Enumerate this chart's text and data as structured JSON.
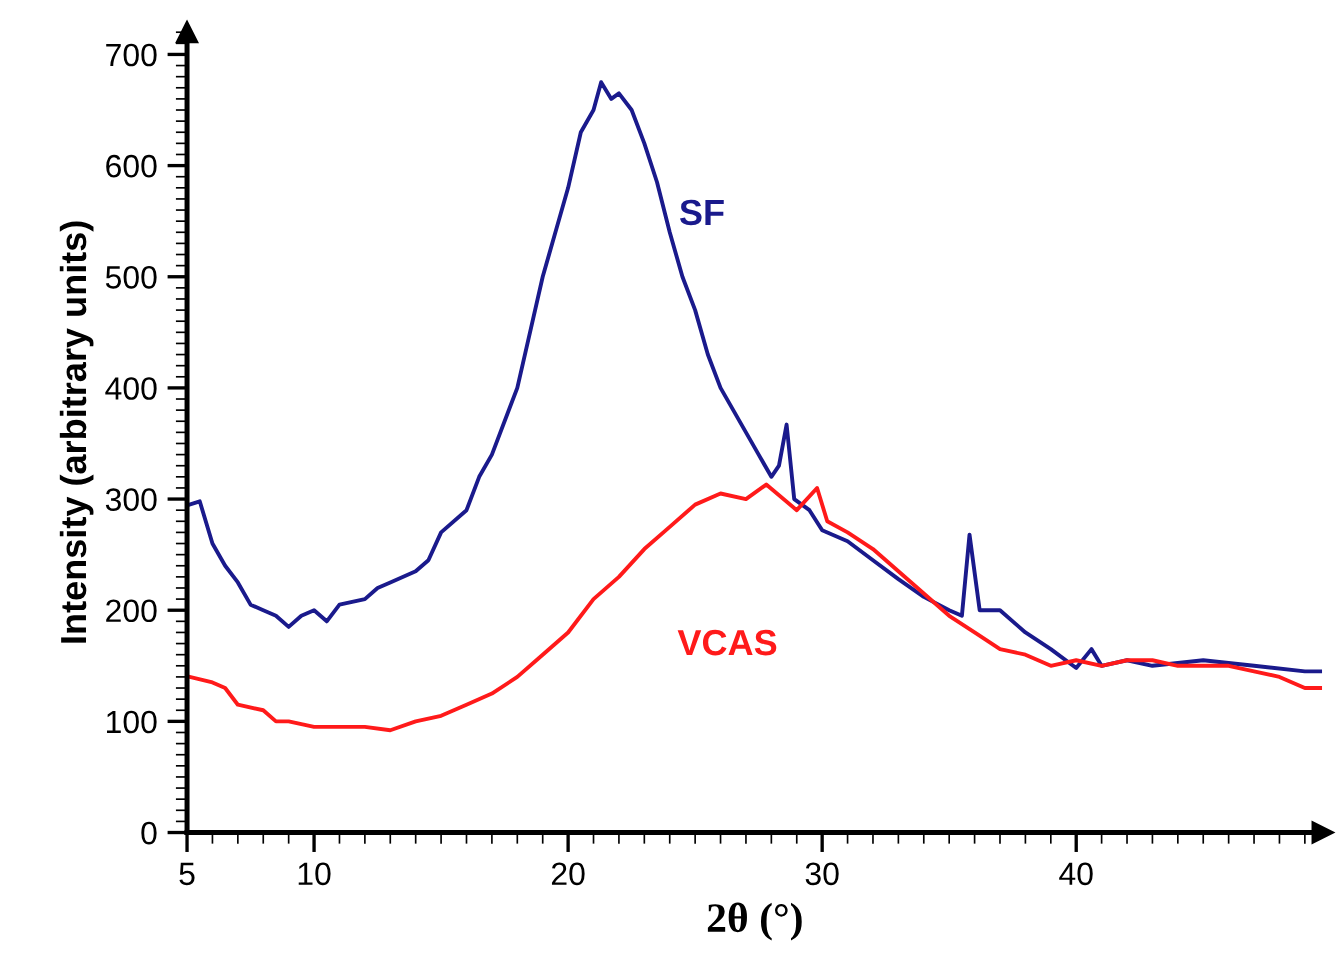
{
  "chart_data": {
    "type": "line",
    "xlabel": "2θ (°)",
    "ylabel": "Intensity (arbitrary units)",
    "xlim": [
      5,
      49.7
    ],
    "ylim": [
      0,
      720
    ],
    "xticks": [
      5,
      10,
      20,
      30,
      40
    ],
    "yticks": [
      0,
      100,
      200,
      300,
      400,
      500,
      600,
      700
    ],
    "grid": false,
    "legend": false,
    "marker": "none",
    "line_style": "solid",
    "series": [
      {
        "name": "SF",
        "color": "#1a1a8c",
        "x": [
          5.1,
          5.5,
          6,
          6.5,
          7,
          7.5,
          8,
          8.5,
          9,
          9.5,
          10,
          10.5,
          11,
          12,
          12.5,
          13,
          14,
          14.5,
          15,
          16,
          16.5,
          17,
          18,
          18.5,
          19,
          19.5,
          20,
          20.5,
          21,
          21.3,
          21.7,
          22,
          22.5,
          23,
          23.5,
          24,
          24.5,
          25,
          25.5,
          26,
          26.5,
          27,
          27.5,
          28,
          28.3,
          28.6,
          28.9,
          29.5,
          30,
          31,
          32,
          33,
          34,
          35,
          35.5,
          35.8,
          36.2,
          37,
          38,
          39,
          40,
          40.6,
          41,
          42,
          43,
          45,
          47,
          49,
          49.6
        ],
        "values": [
          295,
          298,
          260,
          240,
          225,
          205,
          200,
          195,
          185,
          195,
          200,
          190,
          205,
          210,
          220,
          225,
          235,
          245,
          270,
          290,
          320,
          340,
          400,
          450,
          500,
          540,
          580,
          630,
          650,
          675,
          660,
          665,
          650,
          620,
          585,
          540,
          500,
          470,
          430,
          400,
          380,
          360,
          340,
          320,
          330,
          367,
          300,
          290,
          272,
          262,
          245,
          228,
          212,
          200,
          195,
          268,
          200,
          200,
          180,
          165,
          148,
          165,
          150,
          155,
          150,
          155,
          150,
          145,
          145
        ]
      },
      {
        "name": "VCAS",
        "color": "#ff1a1a",
        "x": [
          5.1,
          6,
          6.5,
          7,
          8,
          8.5,
          9,
          10,
          11,
          12,
          13,
          14,
          15,
          16,
          17,
          18,
          19,
          20,
          21,
          22,
          23,
          24,
          25,
          26,
          27,
          27.8,
          29,
          29.8,
          30.2,
          31,
          32,
          33,
          34,
          35,
          36,
          37,
          38,
          39,
          40,
          41,
          42,
          43,
          44,
          45,
          46,
          47,
          48,
          49,
          49.6
        ],
        "values": [
          140,
          135,
          130,
          115,
          110,
          100,
          100,
          95,
          95,
          95,
          92,
          100,
          105,
          115,
          125,
          140,
          160,
          180,
          210,
          230,
          255,
          275,
          295,
          305,
          300,
          313,
          290,
          310,
          280,
          270,
          255,
          235,
          215,
          195,
          180,
          165,
          160,
          150,
          155,
          150,
          155,
          155,
          150,
          150,
          150,
          145,
          140,
          130,
          130
        ]
      }
    ]
  }
}
